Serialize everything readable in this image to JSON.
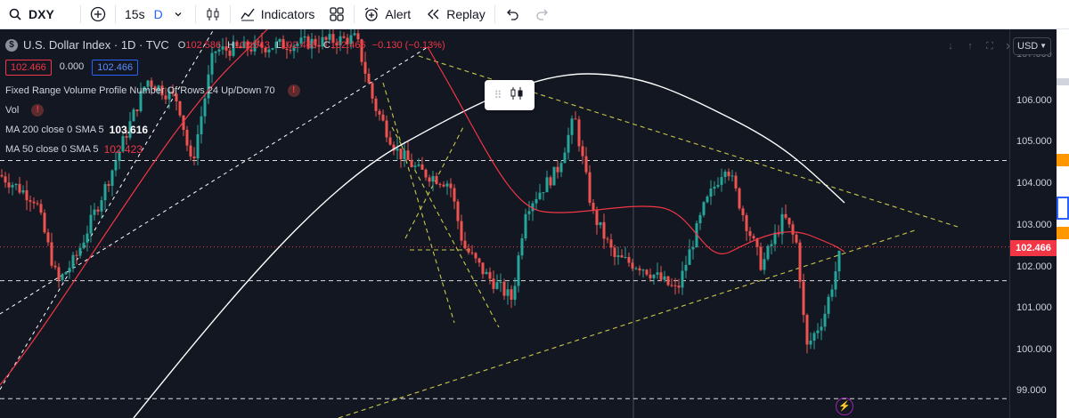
{
  "toolbar": {
    "symbol": "DXY",
    "interval": "15s",
    "interval_active": "D",
    "indicators_label": "Indicators",
    "alert_label": "Alert",
    "replay_label": "Replay"
  },
  "legend": {
    "title": "U.S. Dollar Index · 1D · TVC",
    "symbol_logo": "$",
    "ohlc": {
      "o_key": "O",
      "o": "102.586",
      "h_key": "H",
      "h": "102.843",
      "l_key": "L",
      "l": "102.460",
      "c_key": "C",
      "c": "102.466",
      "change": "−0.130 (−0.13%)"
    },
    "bid": "102.466",
    "spread": "0.000",
    "ask": "102.466",
    "indicators": [
      {
        "label": "Fixed Range Volume Profile Number Of Rows 24 Up/Down 70"
      },
      {
        "label": "Vol"
      },
      {
        "label": "MA 200 close 0 SMA 5",
        "value": "103.616"
      },
      {
        "label": "MA 50 close 0 SMA 5",
        "value": "102.423"
      }
    ]
  },
  "price_axis": {
    "currency": "USD",
    "ticks": [
      "106.000",
      "105.000",
      "104.000",
      "103.000",
      "102.000",
      "101.000",
      "100.000",
      "99.000"
    ],
    "last_price": "102.466",
    "top_partial": "107.000"
  },
  "colors": {
    "background": "#131722",
    "up": "#26a69a",
    "down": "#ef5350",
    "ma200": "#ffffff",
    "ma50": "#f23645",
    "trendline": "#c8c84a",
    "hline": "#ffffff"
  },
  "icons": {
    "search": "search-icon",
    "add": "plus-circle-icon",
    "chart_type": "candles-icon",
    "indicators": "indicators-icon",
    "templates": "templates-icon",
    "alert": "alarm-clock-icon",
    "replay": "replay-icon",
    "undo": "undo-icon",
    "redo": "redo-icon",
    "float_drag": "drag-handle-icon",
    "float_chart": "candles-icon",
    "bolt": "lightning-icon"
  }
}
